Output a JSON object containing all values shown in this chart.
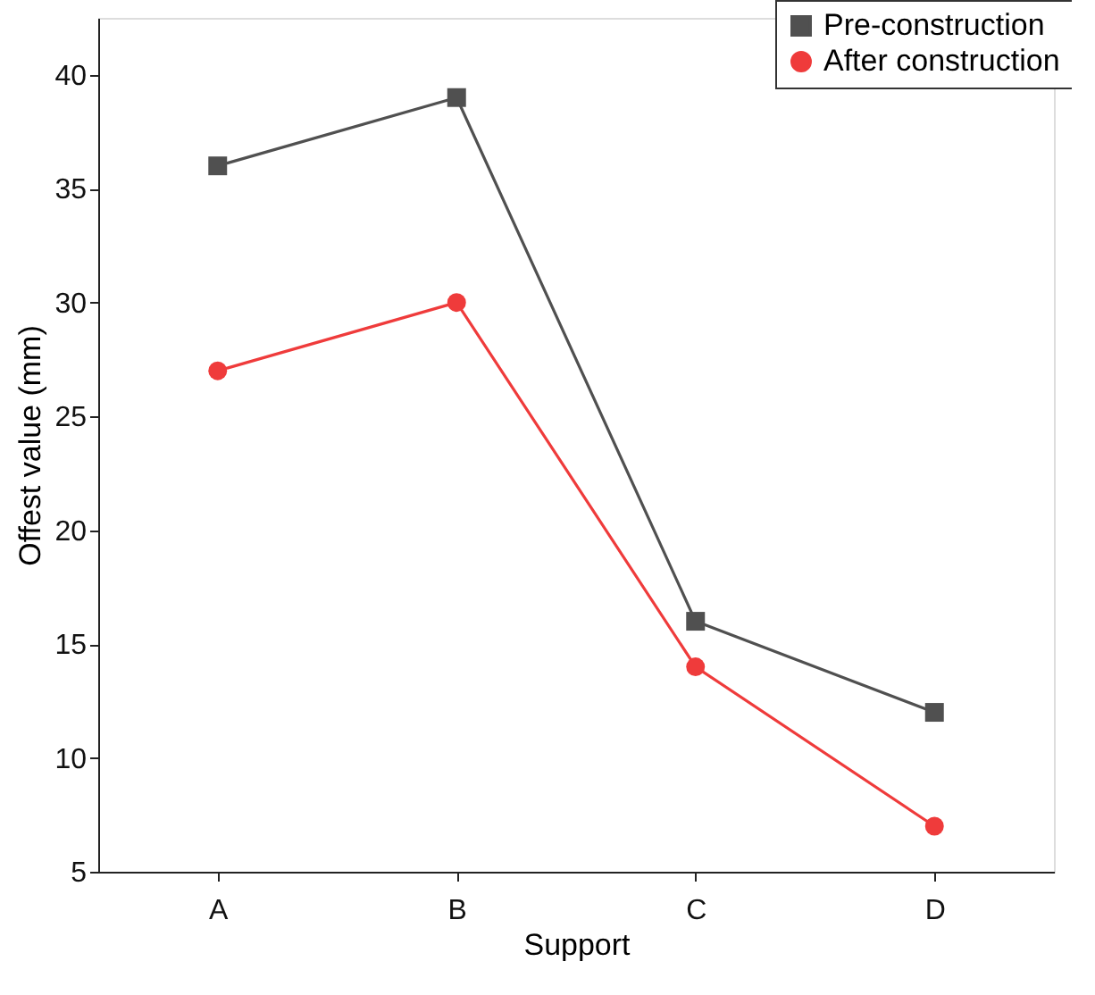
{
  "chart_data": {
    "type": "line",
    "xlabel": "Support",
    "ylabel": "Offest value (mm)",
    "categories": [
      "A",
      "B",
      "C",
      "D"
    ],
    "series": [
      {
        "name": "Pre-construction",
        "color": "#505050",
        "marker": "square",
        "values": [
          36,
          39,
          16,
          12
        ]
      },
      {
        "name": "After construction",
        "color": "#ef3b3b",
        "marker": "circle",
        "values": [
          27,
          30,
          14,
          7
        ]
      }
    ],
    "ylim": [
      5,
      42.5
    ],
    "yticks": [
      5,
      10,
      15,
      20,
      25,
      30,
      35,
      40
    ],
    "grid": false,
    "legend": "top right",
    "line_style": "solid"
  }
}
